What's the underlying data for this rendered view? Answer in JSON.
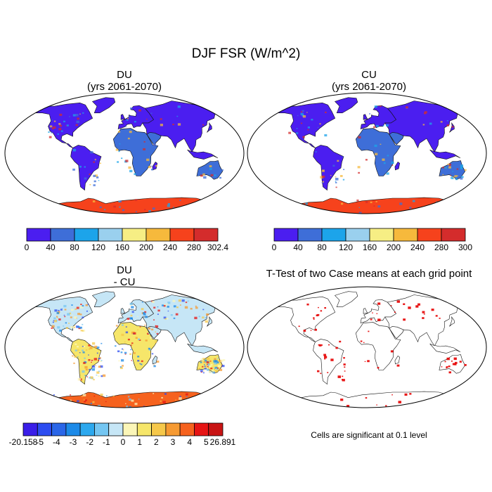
{
  "title": "DJF FSR (W/m^2)",
  "panels": [
    {
      "id": "du",
      "title_line1": "DU",
      "title_line2": "(yrs 2061-2070)"
    },
    {
      "id": "cu",
      "title_line1": "CU",
      "title_line2": "(yrs 2061-2070)"
    },
    {
      "id": "diff",
      "title_line1": "DU",
      "title_line2": "- CU"
    },
    {
      "id": "ttest",
      "title_line1": "T-Test of two Case means at each grid point"
    }
  ],
  "colorbars": {
    "du": {
      "labels": [
        "0",
        "40",
        "80",
        "120",
        "160",
        "200",
        "240",
        "280",
        "302.4"
      ],
      "colors": [
        "#4b1ef0",
        "#3e6ed8",
        "#1ca4ea",
        "#9ad0ee",
        "#f6ee84",
        "#f6b93c",
        "#f6421c",
        "#d42c2c"
      ]
    },
    "cu": {
      "labels": [
        "0",
        "40",
        "80",
        "120",
        "160",
        "200",
        "240",
        "280",
        "300"
      ],
      "colors": [
        "#4b1ef0",
        "#3e6ed8",
        "#1ca4ea",
        "#9ad0ee",
        "#f6ee84",
        "#f6b93c",
        "#f6421c",
        "#d42c2c"
      ]
    },
    "diff": {
      "labels": [
        "-20.158",
        "-5",
        "-4",
        "-3",
        "-2",
        "-1",
        "0",
        "1",
        "2",
        "3",
        "4",
        "5",
        "26.891"
      ],
      "colors": [
        "#3a1ee8",
        "#2c4cf0",
        "#2a66e8",
        "#1c8ae8",
        "#2ca8ee",
        "#74c6f2",
        "#c6e6f6",
        "#fbf6b8",
        "#f6e66a",
        "#f6c84a",
        "#f69a32",
        "#f6621e",
        "#e61414",
        "#c81414"
      ]
    }
  },
  "ttest_caption": "Cells are significant at 0.1 level",
  "colors": {
    "ocean": "#ffffff",
    "land_low": "#4b1ef0",
    "land_mid": "#3e6ed8",
    "antarctic": "#f6421c",
    "significant": "#e60000"
  }
}
